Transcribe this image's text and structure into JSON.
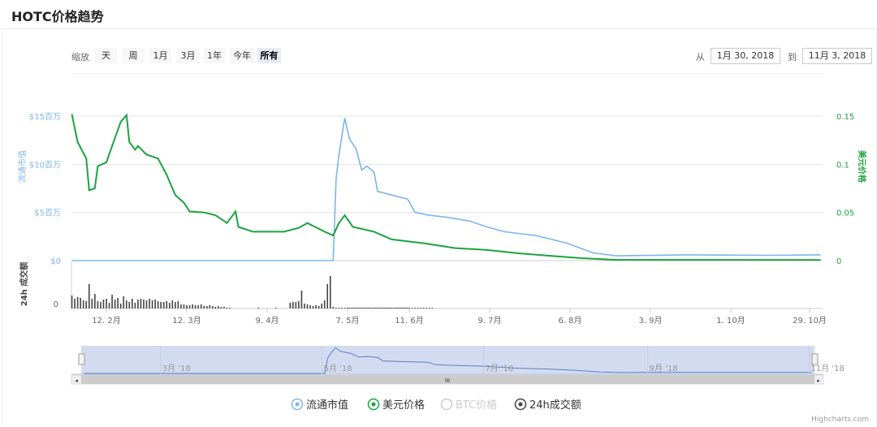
{
  "page_title": "HOTC价格趋势",
  "range_selector": {
    "label": "缩放",
    "buttons": [
      "天",
      "周",
      "1月",
      "3月",
      "1年",
      "今年",
      "所有"
    ],
    "active": "所有"
  },
  "date_inputs": {
    "from_label": "从",
    "from_value": "1月 30, 2018",
    "to_label": "到",
    "to_value": "11月 3, 2018"
  },
  "credits": "Highcharts.com",
  "colors": {
    "market_cap": "#7cb5ec",
    "usd_price": "#1aa33d",
    "btc_price": "#cccccc",
    "volume": "#434348",
    "navigator_fill": "#cdd7ee"
  },
  "chart_data": {
    "type": "line",
    "year": 2018,
    "x_ticks": [
      "12. 2月",
      "12. 3月",
      "9. 4月",
      "7. 5月",
      "11. 6月",
      "9. 7月",
      "6. 8月",
      "3. 9月",
      "1. 10月",
      "29. 10月"
    ],
    "y_left": {
      "label": "流通市值",
      "ticks": [
        "$0",
        "$5百万",
        "$10百万",
        "$15百万"
      ],
      "range_millions": [
        0,
        15
      ]
    },
    "y_right": {
      "label": "美元价格",
      "ticks": [
        "0",
        "0.05",
        "0.1",
        "0.15"
      ],
      "range": [
        0,
        0.15
      ]
    },
    "y_volume": {
      "label": "24h 成交额",
      "ticks": [
        "0"
      ]
    },
    "grid": true,
    "legend_position": "bottom",
    "legend": [
      {
        "name": "流通市值",
        "visible": true
      },
      {
        "name": "美元价格",
        "visible": true
      },
      {
        "name": "BTC价格",
        "visible": false
      },
      {
        "name": "24h成交额",
        "visible": true
      }
    ],
    "series": [
      {
        "name": "美元价格",
        "axis": "right",
        "points": [
          [
            "1-31",
            0.152
          ],
          [
            "2-2",
            0.123
          ],
          [
            "2-5",
            0.106
          ],
          [
            "2-6",
            0.073
          ],
          [
            "2-8",
            0.075
          ],
          [
            "2-9",
            0.098
          ],
          [
            "2-12",
            0.102
          ],
          [
            "2-14",
            0.119
          ],
          [
            "2-17",
            0.144
          ],
          [
            "2-19",
            0.151
          ],
          [
            "2-20",
            0.123
          ],
          [
            "2-22",
            0.115
          ],
          [
            "2-23",
            0.119
          ],
          [
            "2-26",
            0.11
          ],
          [
            "3-2",
            0.106
          ],
          [
            "3-5",
            0.089
          ],
          [
            "3-8",
            0.068
          ],
          [
            "3-11",
            0.06
          ],
          [
            "3-13",
            0.051
          ],
          [
            "3-18",
            0.05
          ],
          [
            "3-22",
            0.047
          ],
          [
            "3-26",
            0.039
          ],
          [
            "3-29",
            0.051
          ],
          [
            "3-30",
            0.035
          ],
          [
            "4-4",
            0.03
          ],
          [
            "4-9",
            0.03
          ],
          [
            "4-15",
            0.03
          ],
          [
            "4-20",
            0.034
          ],
          [
            "4-23",
            0.039
          ],
          [
            "4-29",
            0.03
          ],
          [
            "5-2",
            0.026
          ],
          [
            "5-4",
            0.039
          ],
          [
            "5-6",
            0.047
          ],
          [
            "5-10",
            0.035
          ],
          [
            "5-22",
            0.03
          ],
          [
            "6-1",
            0.022
          ],
          [
            "6-16",
            0.018
          ],
          [
            "6-27",
            0.013
          ],
          [
            "7-8",
            0.011
          ],
          [
            "7-19",
            0.0076
          ],
          [
            "7-30",
            0.005
          ],
          [
            "8-10",
            0.0025
          ],
          [
            "8-22",
            0.0008
          ],
          [
            "10-1",
            0.0008
          ],
          [
            "11-2",
            0.0006
          ]
        ]
      },
      {
        "name": "流通市值",
        "axis": "left",
        "unit": "百万",
        "points": [
          [
            "1-31",
            0
          ],
          [
            "5-2",
            0
          ],
          [
            "5-3",
            8.5
          ],
          [
            "5-4",
            11
          ],
          [
            "5-6",
            14.8
          ],
          [
            "5-8",
            12.7
          ],
          [
            "5-12",
            11.5
          ],
          [
            "5-15",
            9.4
          ],
          [
            "5-18",
            9.8
          ],
          [
            "5-22",
            9.2
          ],
          [
            "5-24",
            7.2
          ],
          [
            "6-1",
            6.8
          ],
          [
            "6-10",
            6.4
          ],
          [
            "6-13",
            5.0
          ],
          [
            "6-18",
            4.7
          ],
          [
            "6-24",
            4.5
          ],
          [
            "7-2",
            4.1
          ],
          [
            "7-8",
            3.5
          ],
          [
            "7-14",
            3.0
          ],
          [
            "7-25",
            2.6
          ],
          [
            "8-5",
            1.8
          ],
          [
            "8-14",
            0.8
          ],
          [
            "8-22",
            0.5
          ],
          [
            "9-15",
            0.6
          ],
          [
            "10-15",
            0.55
          ],
          [
            "11-2",
            0.6
          ]
        ]
      }
    ],
    "volume": {
      "start": "1-31",
      "values": [
        16,
        12,
        14,
        13,
        10,
        9,
        30,
        12,
        18,
        9,
        8,
        11,
        12,
        7,
        17,
        11,
        13,
        6,
        15,
        10,
        8,
        12,
        7,
        11,
        12,
        11,
        10,
        12,
        10,
        11,
        9,
        8,
        8,
        9,
        7,
        10,
        8,
        9,
        5,
        5,
        4,
        4,
        5,
        4,
        4,
        5,
        3,
        3,
        4,
        3,
        2,
        3,
        2,
        2,
        1,
        1,
        0,
        0,
        0,
        0,
        0,
        0,
        0,
        0,
        0,
        1,
        0,
        0,
        0,
        0,
        0,
        1,
        0,
        0,
        0,
        0,
        7,
        8,
        8,
        9,
        22,
        6,
        5,
        4,
        3,
        4,
        3,
        6,
        10,
        30,
        40,
        2,
        1,
        1,
        1,
        1,
        1,
        1,
        1,
        1,
        1,
        1,
        1,
        1,
        1,
        1,
        1,
        1,
        1,
        1,
        1,
        1,
        1,
        1,
        1,
        1,
        1,
        1,
        1,
        1,
        1,
        1,
        1,
        1,
        1,
        1,
        1,
        1,
        1,
        1,
        1,
        1,
        1,
        1,
        1,
        1,
        1,
        1,
        1,
        1
      ]
    },
    "navigator": {
      "ticks": [
        "3月 '18",
        "5月 '18",
        "7月 '18",
        "9月 '18",
        "11月 '18"
      ]
    }
  }
}
